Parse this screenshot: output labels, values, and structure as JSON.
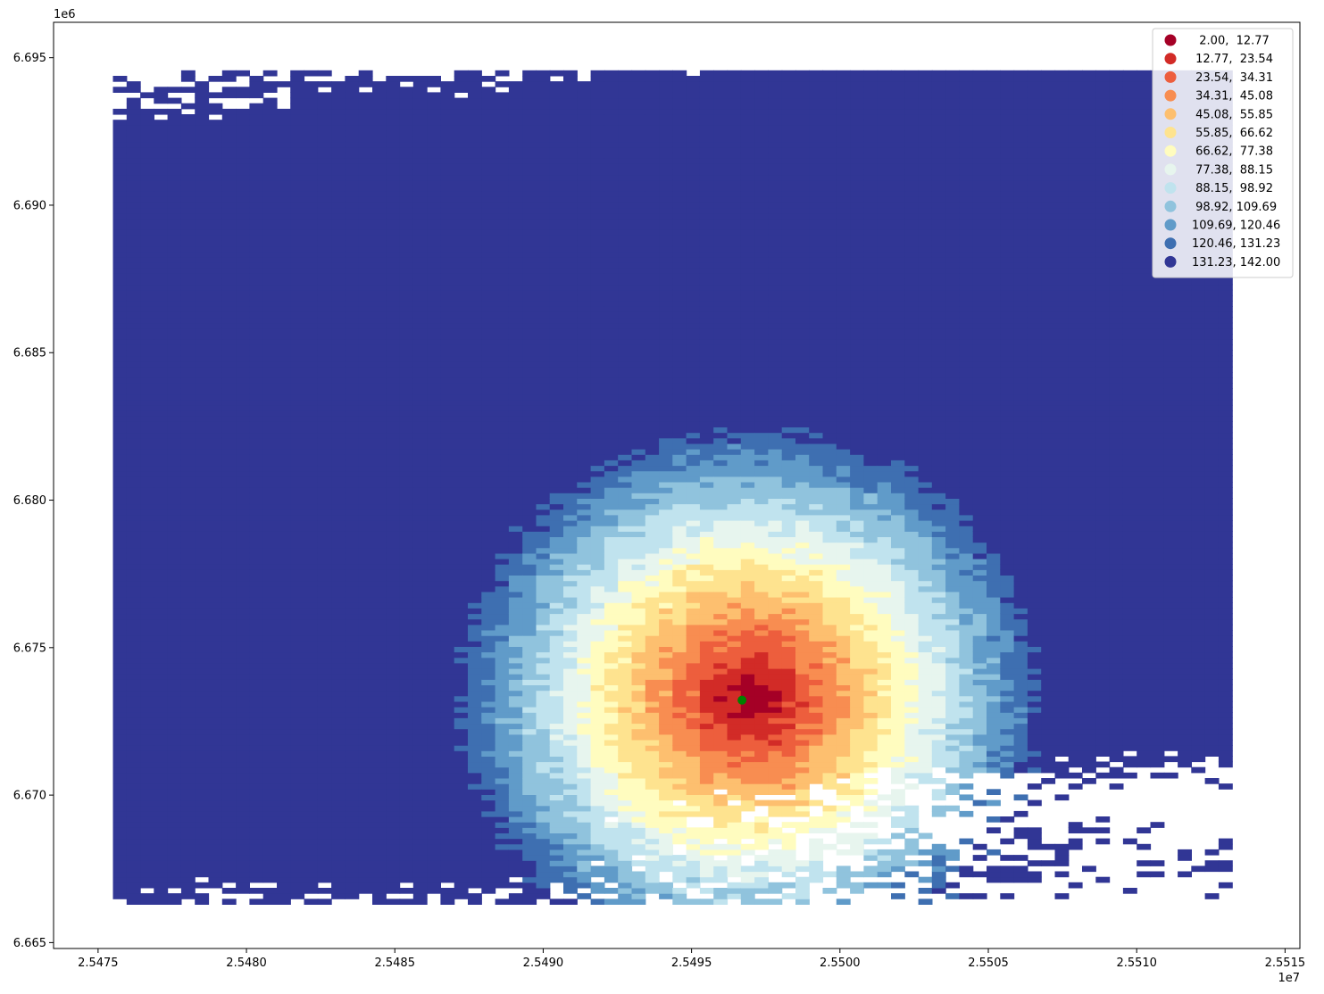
{
  "chart_data": {
    "type": "map",
    "crs_note": "",
    "x_offset_label": "1e7",
    "y_offset_label": "1e6",
    "xlim": [
      2.54735,
      2.55155
    ],
    "ylim": [
      6.6648,
      6.6962
    ],
    "x_ticks": [
      {
        "value": 2.5475,
        "label": "2.5475"
      },
      {
        "value": 2.548,
        "label": "2.5480"
      },
      {
        "value": 2.5485,
        "label": "2.5485"
      },
      {
        "value": 2.549,
        "label": "2.5490"
      },
      {
        "value": 2.5495,
        "label": "2.5495"
      },
      {
        "value": 2.55,
        "label": "2.5500"
      },
      {
        "value": 2.5505,
        "label": "2.5505"
      },
      {
        "value": 2.551,
        "label": "2.5510"
      },
      {
        "value": 2.5515,
        "label": "2.5515"
      }
    ],
    "y_ticks": [
      {
        "value": 6.665,
        "label": "6.665"
      },
      {
        "value": 6.67,
        "label": "6.670"
      },
      {
        "value": 6.675,
        "label": "6.675"
      },
      {
        "value": 6.68,
        "label": "6.680"
      },
      {
        "value": 6.685,
        "label": "6.685"
      },
      {
        "value": 6.69,
        "label": "6.690"
      },
      {
        "value": 6.695,
        "label": "6.695"
      }
    ],
    "legend": {
      "placement": "top-right",
      "classes": [
        {
          "label": "  2.00,  12.77",
          "color": "#a50026"
        },
        {
          "label": " 12.77,  23.54",
          "color": "#d22b27"
        },
        {
          "label": " 23.54,  34.31",
          "color": "#ed5e3d"
        },
        {
          "label": " 34.31,  45.08",
          "color": "#f88d51"
        },
        {
          "label": " 45.08,  55.85",
          "color": "#fdbf6f"
        },
        {
          "label": " 55.85,  66.62",
          "color": "#fee38f"
        },
        {
          "label": " 66.62,  77.38",
          "color": "#fffcbf"
        },
        {
          "label": " 77.38,  88.15",
          "color": "#e7f5ee"
        },
        {
          "label": " 88.15,  98.92",
          "color": "#c0e3ee"
        },
        {
          "label": " 98.92, 109.69",
          "color": "#90c3dd"
        },
        {
          "label": "109.69, 120.46",
          "color": "#609bc9"
        },
        {
          "label": "120.46, 131.23",
          "color": "#3e6fb1"
        },
        {
          "label": "131.23, 142.00",
          "color": "#313695"
        }
      ]
    },
    "marker": {
      "x": 2.54967,
      "y": 6.67322,
      "color": "#008000"
    },
    "grid": false
  }
}
